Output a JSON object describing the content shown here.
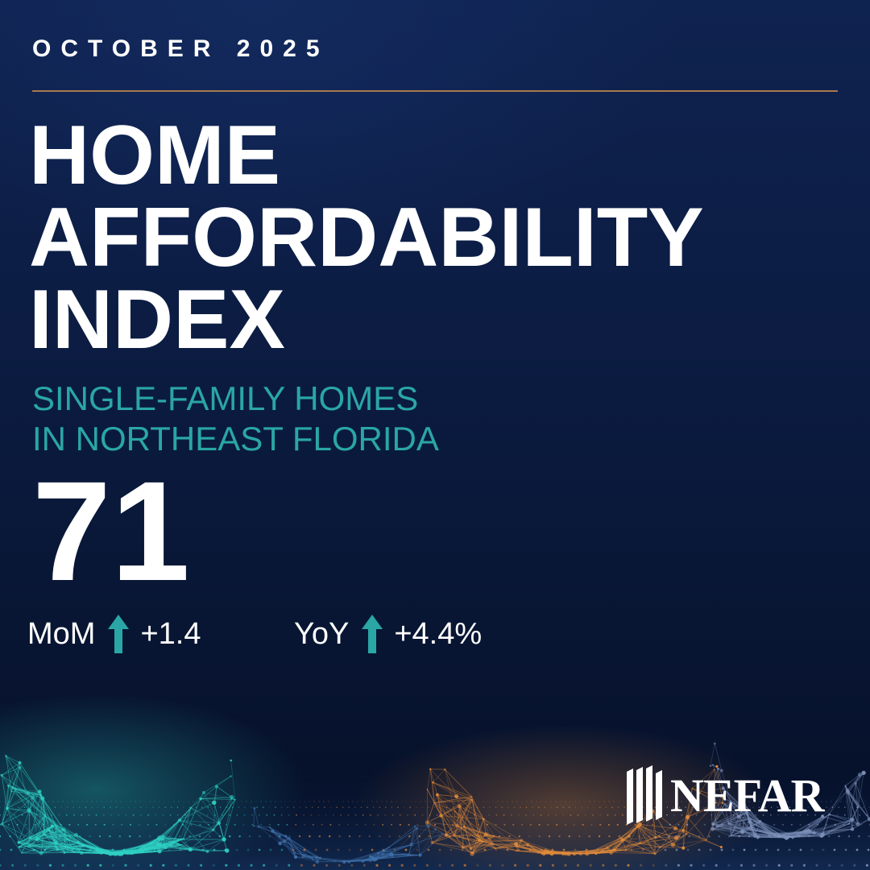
{
  "header": {
    "date": "OCTOBER 2025",
    "title_lines": [
      "HOME",
      "AFFORDABILITY",
      "INDEX"
    ]
  },
  "subtitle_lines": [
    "SINGLE-FAMILY HOMES",
    "IN NORTHEAST FLORIDA"
  ],
  "index_value": "71",
  "changes": {
    "mom": {
      "label": "MoM",
      "icon": "arrow-up-icon",
      "value": "+1.4"
    },
    "yoy": {
      "label": "YoY",
      "icon": "arrow-up-icon",
      "value": "+4.4%"
    }
  },
  "logo": {
    "text": "NEFAR"
  },
  "colors": {
    "background": "#0b1b40",
    "accent_teal": "#2aa6a6",
    "divider_gold": "#a8794e",
    "network_teal": "#2fd0c4",
    "network_orange": "#e08a3c"
  }
}
